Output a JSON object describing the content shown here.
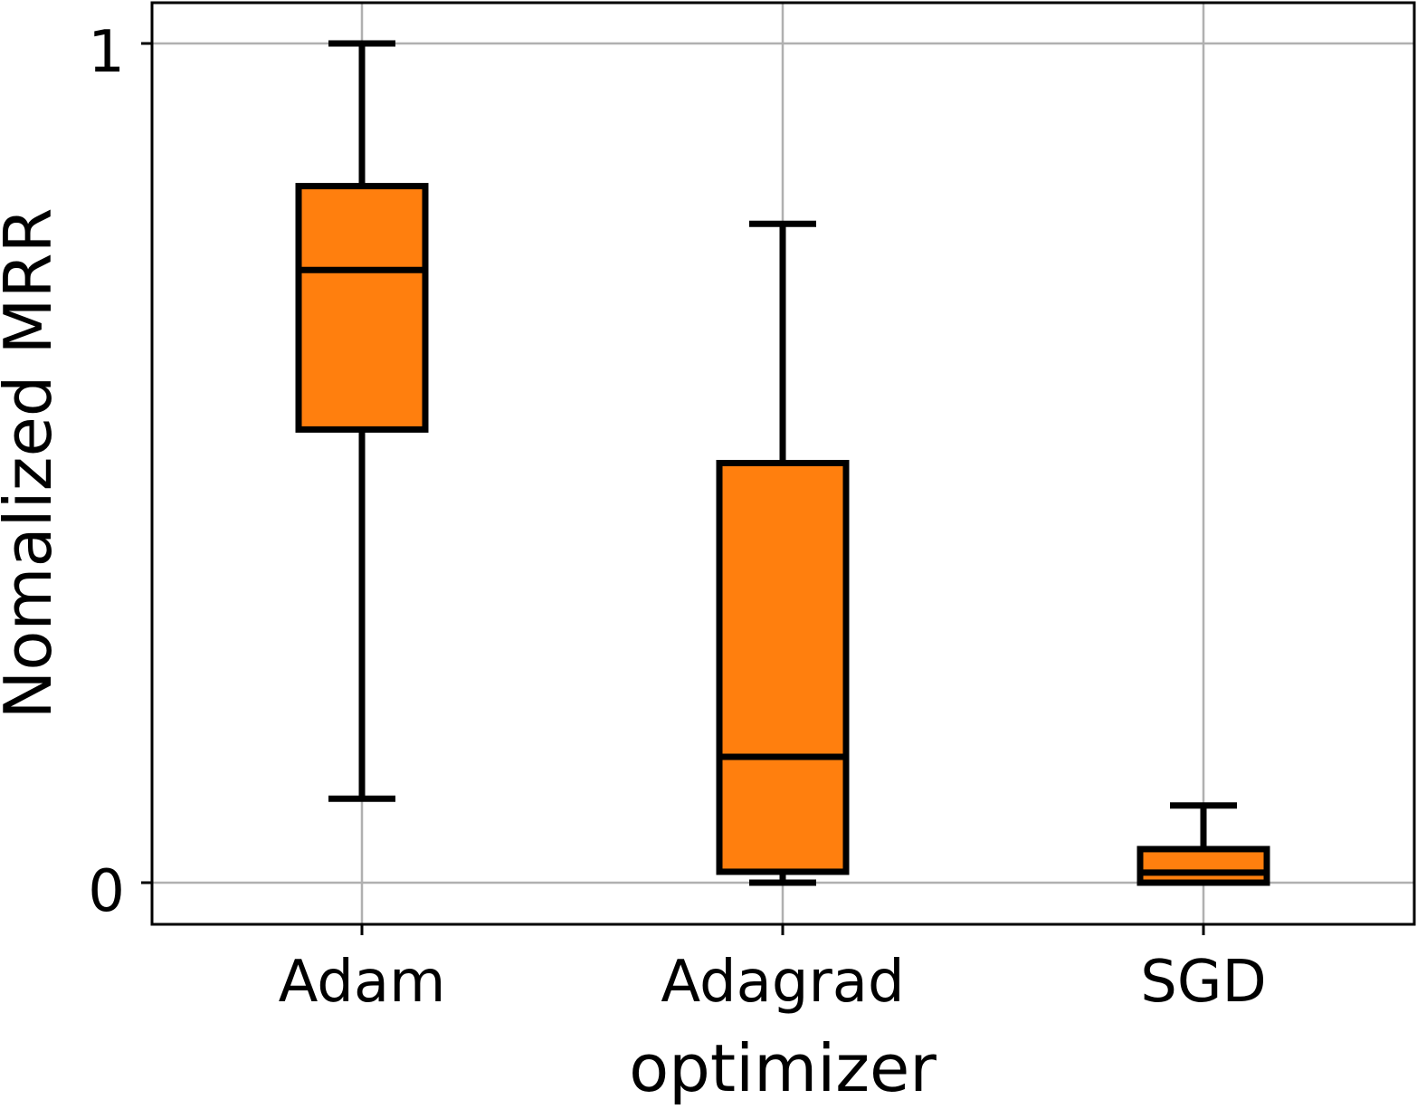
{
  "chart_data": {
    "type": "boxplot",
    "title": "",
    "xlabel": "optimizer",
    "ylabel": "Nomalized MRR",
    "ylim": [
      -0.05,
      1.05
    ],
    "yticks": [
      {
        "value": 0,
        "label": "0"
      },
      {
        "value": 1,
        "label": "1"
      }
    ],
    "grid": true,
    "categories": [
      "Adam",
      "Adagrad",
      "SGD"
    ],
    "boxes": [
      {
        "name": "Adam",
        "whisker_low": 0.1,
        "q1": 0.54,
        "median": 0.73,
        "q3": 0.83,
        "whisker_high": 1.0
      },
      {
        "name": "Adagrad",
        "whisker_low": 0.0,
        "q1": 0.013,
        "median": 0.15,
        "q3": 0.5,
        "whisker_high": 0.785
      },
      {
        "name": "SGD",
        "whisker_low": 0.0,
        "q1": 0.0,
        "median": 0.012,
        "q3": 0.04,
        "whisker_high": 0.092
      }
    ]
  },
  "colors": {
    "box_fill": "#ff7f0e",
    "box_edge": "#000000",
    "grid": "#b0b0b0",
    "axes": "#000000"
  }
}
